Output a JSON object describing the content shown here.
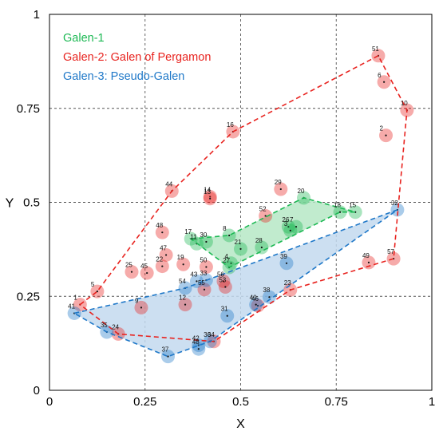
{
  "chart_data": {
    "type": "scatter",
    "title": "",
    "xlabel": "X",
    "ylabel": "Y",
    "xlim": [
      0,
      1
    ],
    "ylim": [
      0,
      1
    ],
    "x_ticks": [
      {
        "value": 0,
        "label": "0"
      },
      {
        "value": 0.25,
        "label": "0.25"
      },
      {
        "value": 0.5,
        "label": "0.5"
      },
      {
        "value": 0.75,
        "label": "0.75"
      },
      {
        "value": 1,
        "label": "1"
      }
    ],
    "y_ticks": [
      {
        "value": 0,
        "label": "0"
      },
      {
        "value": 0.25,
        "label": "0.25"
      },
      {
        "value": 0.5,
        "label": "0.5"
      },
      {
        "value": 0.75,
        "label": "0.75"
      },
      {
        "value": 1,
        "label": "1"
      }
    ],
    "grid": true,
    "legend_position": "top-left",
    "series": [
      {
        "name": "Galen-1",
        "color": "#1db954",
        "fill": "#b6e8c6",
        "hull": [
          "17",
          "8",
          "20",
          "15",
          "18",
          "27"
        ],
        "points": [
          {
            "id": "17",
            "x": 0.37,
            "y": 0.403
          },
          {
            "id": "8",
            "x": 0.47,
            "y": 0.412
          },
          {
            "id": "21",
            "x": 0.5,
            "y": 0.376
          },
          {
            "id": "28",
            "x": 0.555,
            "y": 0.38
          },
          {
            "id": "26",
            "x": 0.625,
            "y": 0.435
          },
          {
            "id": "7",
            "x": 0.645,
            "y": 0.435
          },
          {
            "id": "3",
            "x": 0.63,
            "y": 0.425
          },
          {
            "id": "20",
            "x": 0.665,
            "y": 0.512
          },
          {
            "id": "18",
            "x": 0.76,
            "y": 0.474
          },
          {
            "id": "15",
            "x": 0.8,
            "y": 0.474
          },
          {
            "id": "4",
            "x": 0.475,
            "y": 0.338
          },
          {
            "id": "27",
            "x": 0.47,
            "y": 0.327
          },
          {
            "id": "11",
            "x": 0.385,
            "y": 0.39
          },
          {
            "id": "30",
            "x": 0.41,
            "y": 0.395
          }
        ]
      },
      {
        "name": "Galen-2: Galen of Pergamon",
        "color": "#e8231f",
        "fill": "none",
        "hull": [
          "1",
          "5",
          "44",
          "16",
          "51",
          "10",
          "57",
          "23",
          "34",
          "24"
        ],
        "points": [
          {
            "id": "51",
            "x": 0.86,
            "y": 0.89
          },
          {
            "id": "6",
            "x": 0.875,
            "y": 0.82
          },
          {
            "id": "10",
            "x": 0.935,
            "y": 0.745
          },
          {
            "id": "2",
            "x": 0.88,
            "y": 0.678
          },
          {
            "id": "16",
            "x": 0.48,
            "y": 0.688
          },
          {
            "id": "44",
            "x": 0.32,
            "y": 0.53
          },
          {
            "id": "14",
            "x": 0.42,
            "y": 0.515
          },
          {
            "id": "13",
            "x": 0.42,
            "y": 0.51
          },
          {
            "id": "29",
            "x": 0.605,
            "y": 0.535
          },
          {
            "id": "52",
            "x": 0.565,
            "y": 0.464
          },
          {
            "id": "48",
            "x": 0.295,
            "y": 0.42
          },
          {
            "id": "47",
            "x": 0.305,
            "y": 0.36
          },
          {
            "id": "19",
            "x": 0.35,
            "y": 0.335
          },
          {
            "id": "22",
            "x": 0.295,
            "y": 0.33
          },
          {
            "id": "25",
            "x": 0.215,
            "y": 0.315
          },
          {
            "id": "45",
            "x": 0.255,
            "y": 0.312
          },
          {
            "id": "50",
            "x": 0.41,
            "y": 0.328
          },
          {
            "id": "56",
            "x": 0.455,
            "y": 0.29
          },
          {
            "id": "53",
            "x": 0.46,
            "y": 0.275
          },
          {
            "id": "55",
            "x": 0.405,
            "y": 0.268
          },
          {
            "id": "5",
            "x": 0.125,
            "y": 0.263
          },
          {
            "id": "1",
            "x": 0.08,
            "y": 0.228
          },
          {
            "id": "9",
            "x": 0.24,
            "y": 0.22
          },
          {
            "id": "12",
            "x": 0.355,
            "y": 0.228
          },
          {
            "id": "46",
            "x": 0.545,
            "y": 0.225
          },
          {
            "id": "23",
            "x": 0.63,
            "y": 0.267
          },
          {
            "id": "49",
            "x": 0.835,
            "y": 0.34
          },
          {
            "id": "57",
            "x": 0.9,
            "y": 0.35
          },
          {
            "id": "24",
            "x": 0.18,
            "y": 0.15
          },
          {
            "id": "34",
            "x": 0.43,
            "y": 0.13
          }
        ]
      },
      {
        "name": "Galen-3: Pseudo-Galen",
        "color": "#1f78c8",
        "fill": "#c3d9ee",
        "hull": [
          "41",
          "54",
          "32",
          "36",
          "37",
          "35"
        ],
        "points": [
          {
            "id": "32",
            "x": 0.91,
            "y": 0.48
          },
          {
            "id": "39",
            "x": 0.62,
            "y": 0.338
          },
          {
            "id": "33",
            "x": 0.41,
            "y": 0.293
          },
          {
            "id": "43",
            "x": 0.385,
            "y": 0.29
          },
          {
            "id": "54",
            "x": 0.355,
            "y": 0.272
          },
          {
            "id": "38",
            "x": 0.575,
            "y": 0.248
          },
          {
            "id": "40",
            "x": 0.54,
            "y": 0.228
          },
          {
            "id": "31",
            "x": 0.465,
            "y": 0.198
          },
          {
            "id": "41",
            "x": 0.065,
            "y": 0.205
          },
          {
            "id": "35",
            "x": 0.15,
            "y": 0.155
          },
          {
            "id": "42",
            "x": 0.39,
            "y": 0.12
          },
          {
            "id": "36",
            "x": 0.42,
            "y": 0.13
          },
          {
            "id": "48b",
            "label": "48",
            "x": 0.39,
            "y": 0.11
          },
          {
            "id": "37",
            "x": 0.31,
            "y": 0.09
          }
        ]
      }
    ]
  }
}
